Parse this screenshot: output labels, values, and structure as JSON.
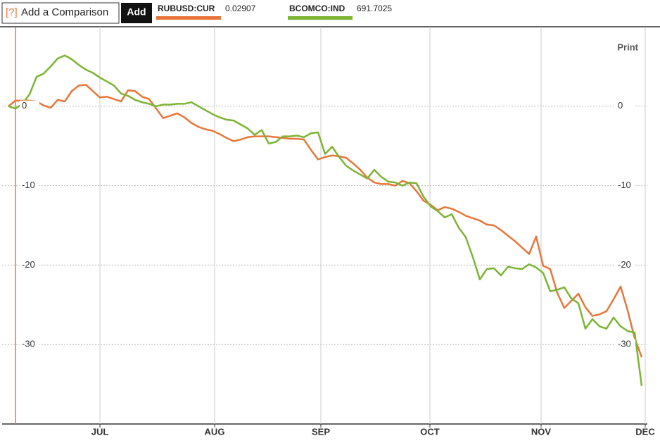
{
  "toolbar": {
    "help": "[?]",
    "input_placeholder": "Add a Comparison",
    "add_button": "Add"
  },
  "chart_data": {
    "type": "line",
    "print_label": "Print",
    "x": [
      0,
      1,
      2,
      3,
      4,
      5,
      6,
      7,
      8,
      9,
      10,
      11,
      12,
      13,
      14,
      15,
      16,
      17,
      18,
      19,
      20,
      21,
      22,
      23,
      24,
      25,
      26,
      27,
      28,
      29,
      30,
      31,
      32,
      33,
      34,
      35,
      36,
      37,
      38,
      39,
      40,
      41,
      42,
      43,
      44,
      45,
      46,
      47,
      48,
      49,
      50,
      51,
      52,
      53,
      54,
      55,
      56,
      57,
      58,
      59,
      60,
      61,
      62,
      63,
      64,
      65,
      66,
      67,
      68,
      69,
      70,
      71,
      72,
      73,
      74,
      75,
      76,
      77,
      78,
      79,
      80,
      81,
      82,
      83,
      84,
      85,
      86,
      87,
      88,
      89,
      90
    ],
    "xlim": [
      -0.9,
      90.8
    ],
    "xticks": [
      {
        "value": 13,
        "label": "JUL"
      },
      {
        "value": 29.3,
        "label": "AUG"
      },
      {
        "value": 44.4,
        "label": "SEP"
      },
      {
        "value": 59.9,
        "label": "OCT"
      },
      {
        "value": 75.7,
        "label": "NOV"
      },
      {
        "value": 90.5,
        "label": "DEC"
      }
    ],
    "ylim": [
      -40,
      10
    ],
    "yticks": [
      0,
      -10,
      -20,
      -30
    ],
    "grid": true,
    "series": [
      {
        "name": "RUBUSD:CUR",
        "quote": 0.02907,
        "color": "#e8763a",
        "values": [
          0,
          0.7,
          0.7,
          0.7,
          0.6,
          0.1,
          -0.2,
          0.8,
          0.6,
          1.9,
          2.6,
          2.7,
          1.9,
          1.1,
          1.2,
          0.9,
          0.6,
          2.0,
          1.9,
          1.2,
          0.9,
          -0.3,
          -1.5,
          -1.2,
          -0.9,
          -1.4,
          -2.1,
          -2.6,
          -2.9,
          -3.1,
          -3.5,
          -4.0,
          -4.4,
          -4.2,
          -3.9,
          -3.8,
          -3.8,
          -3.8,
          -3.9,
          -4.0,
          -4.1,
          -4.1,
          -4.2,
          -5.5,
          -6.7,
          -6.4,
          -6.2,
          -6.3,
          -6.5,
          -7.2,
          -8.0,
          -9.0,
          -9.6,
          -9.8,
          -9.8,
          -10.0,
          -9.4,
          -9.7,
          -10.7,
          -11.9,
          -12.4,
          -13.1,
          -12.7,
          -12.9,
          -13.3,
          -13.8,
          -14.1,
          -14.4,
          -14.9,
          -15.0,
          -15.6,
          -16.3,
          -17.0,
          -17.8,
          -18.6,
          -16.4,
          -20.1,
          -20.5,
          -23.5,
          -25.4,
          -24.5,
          -23.6,
          -25.3,
          -26.4,
          -26.2,
          -25.8,
          -24.3,
          -22.7,
          -25.7,
          -29.2,
          -31.6
        ]
      },
      {
        "name": "BCOMCO:IND",
        "quote": 691.7025,
        "color": "#7cb434",
        "values": [
          0,
          -0.3,
          0.3,
          1.5,
          3.7,
          4.1,
          5.0,
          6.0,
          6.4,
          5.9,
          5.2,
          4.6,
          4.2,
          3.6,
          3.1,
          2.6,
          1.6,
          1.3,
          0.8,
          0.5,
          0.3,
          0.0,
          0.2,
          0.2,
          0.3,
          0.3,
          0.5,
          0.0,
          -0.5,
          -1.0,
          -1.4,
          -1.7,
          -1.8,
          -2.3,
          -2.8,
          -3.6,
          -3.0,
          -4.7,
          -4.5,
          -3.8,
          -3.8,
          -3.7,
          -3.9,
          -3.4,
          -3.3,
          -6.0,
          -5.1,
          -6.4,
          -7.5,
          -8.1,
          -8.6,
          -9.1,
          -8.0,
          -8.9,
          -9.5,
          -9.6,
          -10.0,
          -9.6,
          -9.7,
          -11.4,
          -12.6,
          -13.2,
          -14.0,
          -13.6,
          -15.3,
          -16.5,
          -19.0,
          -21.8,
          -20.5,
          -20.4,
          -21.3,
          -20.2,
          -20.4,
          -20.5,
          -19.9,
          -20.3,
          -21.0,
          -23.3,
          -23.1,
          -22.8,
          -24.2,
          -24.8,
          -28.0,
          -26.8,
          -27.7,
          -28.0,
          -26.6,
          -27.7,
          -28.3,
          -28.5,
          -35.2
        ]
      }
    ]
  }
}
